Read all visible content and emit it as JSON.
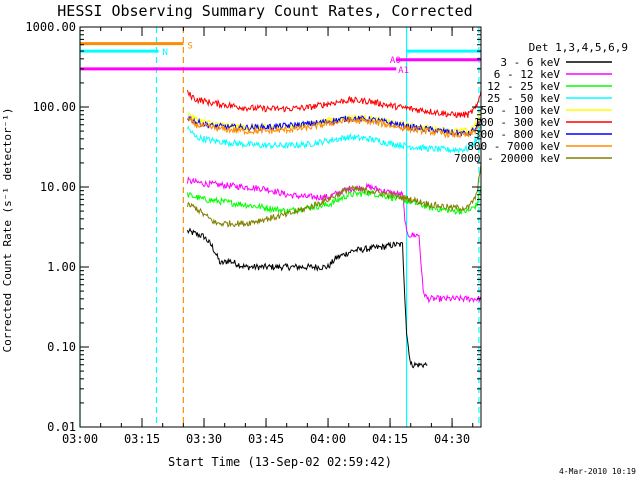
{
  "chart_data": {
    "type": "line",
    "title": "HESSI Observing Summary Count Rates, Corrected",
    "xlabel": "Start Time (13-Sep-02 02:59:42)",
    "ylabel": "Corrected Count Rate (s⁻¹ detector⁻¹)",
    "yscale": "log",
    "ylim": [
      0.01,
      1000
    ],
    "xlim_minutes_after_0300": [
      0,
      97
    ],
    "x_ticks": [
      {
        "label": "03:00",
        "min": 0
      },
      {
        "label": "03:15",
        "min": 15
      },
      {
        "label": "03:30",
        "min": 30
      },
      {
        "label": "03:45",
        "min": 45
      },
      {
        "label": "04:00",
        "min": 60
      },
      {
        "label": "04:15",
        "min": 75
      },
      {
        "label": "04:30",
        "min": 90
      }
    ],
    "y_ticks": [
      {
        "label": "1000.00",
        "v": 1000
      },
      {
        "label": "100.00",
        "v": 100
      },
      {
        "label": "10.00",
        "v": 10
      },
      {
        "label": "1.00",
        "v": 1
      },
      {
        "label": "0.10",
        "v": 0.1
      },
      {
        "label": "0.01",
        "v": 0.01
      }
    ],
    "legend_title": "Det 1,3,4,5,6,9",
    "legend_position": "right",
    "series": [
      {
        "name": "3 - 6 keV",
        "color": "#000000",
        "x_min": [
          26,
          28,
          30,
          32,
          34,
          36,
          40,
          45,
          50,
          55,
          60,
          62,
          66,
          70,
          74,
          76,
          78,
          79,
          80,
          82,
          84
        ],
        "values": [
          2.8,
          2.6,
          2.4,
          1.8,
          1.1,
          1.2,
          1.0,
          1.0,
          1.0,
          1.0,
          1.0,
          1.3,
          1.6,
          1.7,
          1.8,
          1.9,
          1.9,
          0.15,
          0.06,
          0.06,
          0.06
        ]
      },
      {
        "name": "6 - 12 keV",
        "color": "#ff00ff",
        "x_min": [
          26,
          30,
          35,
          40,
          45,
          50,
          55,
          60,
          65,
          70,
          75,
          78,
          79,
          80,
          82,
          83,
          84,
          85,
          96,
          97
        ],
        "values": [
          12,
          11,
          10.5,
          10,
          9.5,
          8,
          7.5,
          7.5,
          9.5,
          10,
          8.5,
          8,
          2.6,
          2.5,
          2.5,
          0.5,
          0.4,
          0.4,
          0.4,
          0.4
        ]
      },
      {
        "name": "12 - 25 keV",
        "color": "#00ff00",
        "x_min": [
          26,
          30,
          35,
          40,
          45,
          50,
          55,
          60,
          65,
          70,
          75,
          80,
          85,
          90,
          94,
          96,
          97
        ],
        "values": [
          8,
          7,
          6.5,
          6,
          5.5,
          5,
          5.5,
          6,
          8,
          8.5,
          7.5,
          6.5,
          5.5,
          5,
          5,
          6,
          10
        ]
      },
      {
        "name": "25 - 50 keV",
        "color": "#00ffff",
        "x_min": [
          26,
          28,
          32,
          36,
          40,
          45,
          50,
          55,
          60,
          65,
          70,
          75,
          80,
          85,
          90,
          94,
          96,
          97
        ],
        "values": [
          55,
          42,
          38,
          36,
          34,
          33,
          33,
          34,
          38,
          42,
          40,
          35,
          32,
          30,
          29,
          30,
          40,
          60
        ]
      },
      {
        "name": "50 - 100 keV",
        "color": "#ffff00",
        "x_min": [
          26,
          28,
          32,
          36,
          40,
          45,
          50,
          55,
          60,
          65,
          70,
          75,
          80,
          85,
          90,
          94,
          96,
          97
        ],
        "values": [
          85,
          70,
          62,
          58,
          56,
          56,
          57,
          60,
          68,
          74,
          72,
          64,
          58,
          54,
          50,
          50,
          62,
          95
        ]
      },
      {
        "name": "100 - 300 keV",
        "color": "#ff0000",
        "x_min": [
          26,
          28,
          32,
          36,
          40,
          45,
          50,
          55,
          60,
          65,
          70,
          75,
          80,
          85,
          90,
          94,
          96,
          97
        ],
        "values": [
          150,
          125,
          112,
          105,
          98,
          95,
          95,
          98,
          110,
          122,
          118,
          104,
          95,
          88,
          80,
          80,
          100,
          160
        ]
      },
      {
        "name": "300 - 800 keV",
        "color": "#0000ff",
        "x_min": [
          26,
          28,
          32,
          36,
          40,
          45,
          50,
          55,
          60,
          65,
          70,
          75,
          80,
          85,
          90,
          94,
          96,
          97
        ],
        "values": [
          75,
          65,
          58,
          56,
          55,
          56,
          58,
          61,
          66,
          72,
          70,
          63,
          56,
          52,
          48,
          46,
          55,
          75
        ]
      },
      {
        "name": "800 - 7000 keV",
        "color": "#ff8c00",
        "x_min": [
          26,
          28,
          32,
          36,
          40,
          45,
          50,
          55,
          60,
          65,
          70,
          75,
          80,
          85,
          90,
          94,
          96,
          97
        ],
        "values": [
          70,
          60,
          55,
          52,
          50,
          50,
          52,
          55,
          62,
          68,
          66,
          59,
          53,
          49,
          45,
          44,
          52,
          70
        ]
      },
      {
        "name": "7000 - 20000 keV",
        "color": "#808000",
        "x_min": [
          26,
          28,
          30,
          33,
          36,
          40,
          45,
          50,
          55,
          60,
          65,
          70,
          75,
          80,
          85,
          90,
          94,
          96,
          97
        ],
        "values": [
          6,
          5.5,
          4.5,
          3.5,
          3.5,
          3.5,
          4,
          4.5,
          5.5,
          7,
          9.5,
          9,
          8,
          7,
          6,
          5.5,
          5.5,
          8,
          20
        ]
      }
    ],
    "annotations": [
      {
        "label": "S",
        "color": "#ff8c00",
        "x_min": 25,
        "value": 600
      },
      {
        "label": "N",
        "color": "#00ffff",
        "x_min": 19,
        "value": 500
      },
      {
        "label": "A0",
        "color": "#ff00ff",
        "x_min": 74,
        "value": 400
      },
      {
        "label": "A1",
        "color": "#ff00ff",
        "x_min": 76,
        "value": 300
      }
    ],
    "state_bars": [
      {
        "name": "S",
        "color": "#ff8c00",
        "value": 620,
        "segments": [
          [
            0,
            25
          ]
        ]
      },
      {
        "name": "N",
        "color": "#00ffff",
        "value": 500,
        "segments": [
          [
            0,
            19
          ],
          [
            79,
            97
          ]
        ]
      },
      {
        "name": "A0",
        "color": "#ff00ff",
        "value": 390,
        "segments": [
          [
            76.5,
            97
          ]
        ]
      },
      {
        "name": "A1",
        "color": "#ff00ff",
        "value": 300,
        "segments": [
          [
            0,
            76.5
          ]
        ]
      }
    ],
    "vertical_markers": [
      {
        "color": "#00ffff",
        "x_min": 0,
        "style": "solid"
      },
      {
        "color": "#00ffff",
        "x_min": 18.5,
        "style": "dashed"
      },
      {
        "color": "#ff8c00",
        "x_min": 25,
        "style": "dashed"
      },
      {
        "color": "#00ffff",
        "x_min": 79,
        "style": "solid"
      },
      {
        "color": "#00ffff",
        "x_min": 96.5,
        "style": "dashed"
      }
    ]
  },
  "footer": {
    "date_stamp": "4-Mar-2010 10:19"
  }
}
